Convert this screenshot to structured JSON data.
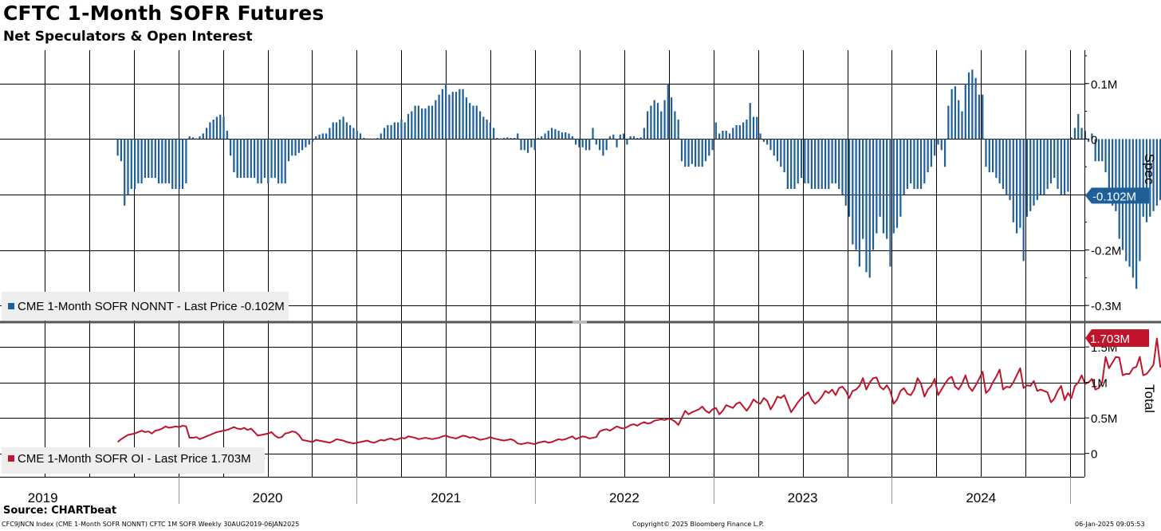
{
  "header": {
    "title": "CFTC 1-Month SOFR Futures",
    "subtitle": "Net Speculators & Open Interest"
  },
  "footer": {
    "source": "Source: CHARTbeat",
    "index_info": "CFC9JNCN Index (CME 1-Month SOFR NONNT) CFTC 1M SOFR  Weekly 30AUG2019-06JAN2025",
    "copyright": "Copyright© 2025 Bloomberg Finance L.P.",
    "timestamp": "06-Jan-2025 09:05:53"
  },
  "colors": {
    "spec_series": "#1f5f99",
    "oi_series": "#c0142b",
    "grid": "#000000",
    "legend_bg": "#eeeeee"
  },
  "chart_data": [
    {
      "type": "bar",
      "axis_label": "Spec",
      "legend": "CME 1-Month SOFR NONNT - Last Price -0.102M",
      "last_value_label": "-0.102M",
      "ylim": [
        -0.33,
        0.16
      ],
      "yticks": [
        {
          "value": 0.1,
          "label": "0.1M"
        },
        {
          "value": 0,
          "label": "0"
        },
        {
          "value": -0.1,
          "label": ""
        },
        {
          "value": -0.2,
          "label": "-0.2M"
        },
        {
          "value": -0.3,
          "label": "-0.3M"
        }
      ],
      "grid": true,
      "x_start": 2019.66,
      "x_step_weeks": 1,
      "unit": "millions of contracts",
      "values": [
        -0.03,
        -0.04,
        -0.12,
        -0.1,
        -0.09,
        -0.09,
        -0.08,
        -0.08,
        -0.07,
        -0.07,
        -0.07,
        -0.07,
        -0.08,
        -0.08,
        -0.08,
        -0.08,
        -0.09,
        -0.09,
        -0.09,
        -0.09,
        -0.08,
        0.005,
        0.003,
        0.001,
        0.005,
        0.01,
        0.02,
        0.03,
        0.035,
        0.04,
        0.044,
        0.04,
        0.015,
        -0.03,
        -0.06,
        -0.07,
        -0.07,
        -0.07,
        -0.07,
        -0.07,
        -0.07,
        -0.08,
        -0.08,
        -0.07,
        -0.08,
        -0.07,
        -0.07,
        -0.08,
        -0.08,
        -0.08,
        -0.04,
        -0.03,
        -0.03,
        -0.025,
        -0.02,
        -0.015,
        -0.01,
        -0.005,
        0.005,
        0.008,
        0.01,
        0.01,
        0.02,
        0.03,
        0.03,
        0.035,
        0.04,
        0.03,
        0.025,
        0.02,
        0.015,
        0.01,
        0.002,
        0.001,
        0.001,
        0.001,
        0.002,
        0.01,
        0.02,
        0.025,
        0.025,
        0.03,
        0.03,
        0.035,
        0.03,
        0.045,
        0.05,
        0.06,
        0.06,
        0.055,
        0.055,
        0.06,
        0.06,
        0.07,
        0.08,
        0.09,
        0.1,
        0.08,
        0.085,
        0.085,
        0.09,
        0.09,
        0.075,
        0.065,
        0.06,
        0.06,
        0.05,
        0.04,
        0.035,
        0.03,
        0.02,
        0.002,
        0.001,
        0.002,
        0.003,
        0.002,
        0.002,
        0.01,
        -0.02,
        -0.02,
        -0.025,
        -0.015,
        -0.02,
        0.002,
        0.005,
        0.01,
        0.015,
        0.02,
        0.018,
        0.015,
        0.012,
        0.012,
        0.01,
        0.005,
        -0.01,
        -0.015,
        -0.015,
        -0.02,
        -0.02,
        0.02,
        -0.01,
        -0.02,
        -0.03,
        -0.02,
        0.005,
        0.008,
        -0.015,
        0.008,
        0.01,
        -0.01,
        0.005,
        0.005,
        0.002,
        0.003,
        0.02,
        0.05,
        0.06,
        0.07,
        0.065,
        0.05,
        0.07,
        0.1,
        0.075,
        0.05,
        0.035,
        -0.04,
        -0.05,
        -0.05,
        -0.045,
        -0.05,
        -0.05,
        -0.05,
        -0.04,
        -0.03,
        -0.02,
        0.03,
        0.01,
        0.015,
        0.015,
        0.01,
        0.02,
        0.025,
        0.025,
        0.03,
        0.035,
        0.065,
        0.04,
        0.04,
        0.01,
        -0.005,
        -0.01,
        -0.02,
        -0.03,
        -0.04,
        -0.05,
        -0.06,
        -0.09,
        -0.09,
        -0.09,
        -0.08,
        -0.07,
        -0.08,
        -0.08,
        -0.09,
        -0.09,
        -0.09,
        -0.09,
        -0.09,
        -0.09,
        -0.08,
        -0.08,
        -0.09,
        -0.1,
        -0.12,
        -0.14,
        -0.19,
        -0.2,
        -0.23,
        -0.18,
        -0.24,
        -0.25,
        -0.2,
        -0.17,
        -0.14,
        -0.17,
        -0.18,
        -0.23,
        -0.17,
        -0.16,
        -0.14,
        -0.1,
        -0.09,
        -0.08,
        -0.09,
        -0.09,
        -0.09,
        -0.08,
        -0.06,
        -0.05,
        -0.03,
        -0.01,
        -0.02,
        -0.05,
        0.06,
        0.09,
        0.095,
        0.07,
        0.05,
        0.1,
        0.12,
        0.125,
        0.11,
        0.08,
        0.08,
        -0.05,
        -0.06,
        -0.06,
        -0.07,
        -0.08,
        -0.09,
        -0.1,
        -0.11,
        -0.15,
        -0.17,
        -0.16,
        -0.22,
        -0.14,
        -0.13,
        -0.12,
        -0.11,
        -0.1,
        -0.1,
        -0.09,
        -0.08,
        -0.07,
        -0.09,
        -0.1,
        -0.1,
        -0.095,
        0.003,
        0.02,
        0.045,
        0.02,
        0.015,
        -0.005,
        0.01,
        -0.04,
        -0.04,
        -0.04,
        -0.06,
        -0.09,
        -0.12,
        -0.13,
        -0.18,
        -0.2,
        -0.22,
        -0.23,
        -0.25,
        -0.27,
        -0.22,
        -0.14,
        -0.15,
        -0.14,
        -0.13,
        -0.12,
        -0.11,
        -0.07,
        -0.05,
        -0.102
      ]
    },
    {
      "type": "line",
      "axis_label": "Total",
      "legend": "CME 1-Month SOFR OI - Last Price 1.703M",
      "last_value_label": "1.703M",
      "ylim": [
        -0.33,
        1.85
      ],
      "yticks": [
        {
          "value": 1.5,
          "label": "1.5M"
        },
        {
          "value": 1.0,
          "label": "1M"
        },
        {
          "value": 0.5,
          "label": "0.5M"
        },
        {
          "value": 0,
          "label": "0"
        }
      ],
      "grid": true,
      "x_start": 2019.66,
      "x_step_weeks": 1,
      "unit": "millions of contracts",
      "values": [
        0.16,
        0.2,
        0.23,
        0.26,
        0.27,
        0.28,
        0.3,
        0.32,
        0.3,
        0.31,
        0.28,
        0.32,
        0.33,
        0.35,
        0.38,
        0.36,
        0.37,
        0.38,
        0.37,
        0.39,
        0.38,
        0.22,
        0.22,
        0.23,
        0.2,
        0.22,
        0.24,
        0.26,
        0.28,
        0.3,
        0.31,
        0.32,
        0.33,
        0.35,
        0.37,
        0.35,
        0.34,
        0.36,
        0.33,
        0.35,
        0.3,
        0.25,
        0.26,
        0.27,
        0.28,
        0.3,
        0.25,
        0.22,
        0.23,
        0.28,
        0.29,
        0.31,
        0.3,
        0.26,
        0.19,
        0.18,
        0.17,
        0.16,
        0.19,
        0.18,
        0.17,
        0.16,
        0.15,
        0.17,
        0.2,
        0.19,
        0.18,
        0.16,
        0.15,
        0.14,
        0.15,
        0.16,
        0.17,
        0.18,
        0.16,
        0.15,
        0.17,
        0.19,
        0.18,
        0.2,
        0.21,
        0.19,
        0.2,
        0.22,
        0.21,
        0.24,
        0.23,
        0.22,
        0.2,
        0.21,
        0.22,
        0.21,
        0.2,
        0.21,
        0.22,
        0.24,
        0.25,
        0.23,
        0.22,
        0.21,
        0.23,
        0.25,
        0.24,
        0.22,
        0.23,
        0.21,
        0.19,
        0.2,
        0.21,
        0.23,
        0.21,
        0.2,
        0.19,
        0.18,
        0.19,
        0.2,
        0.18,
        0.14,
        0.13,
        0.14,
        0.15,
        0.14,
        0.13,
        0.15,
        0.16,
        0.17,
        0.15,
        0.16,
        0.18,
        0.2,
        0.19,
        0.2,
        0.22,
        0.24,
        0.2,
        0.22,
        0.24,
        0.23,
        0.21,
        0.22,
        0.23,
        0.31,
        0.33,
        0.34,
        0.32,
        0.35,
        0.38,
        0.36,
        0.35,
        0.37,
        0.4,
        0.41,
        0.39,
        0.42,
        0.44,
        0.42,
        0.43,
        0.46,
        0.47,
        0.48,
        0.47,
        0.49,
        0.48,
        0.45,
        0.4,
        0.5,
        0.6,
        0.55,
        0.58,
        0.6,
        0.62,
        0.66,
        0.6,
        0.57,
        0.62,
        0.64,
        0.55,
        0.6,
        0.68,
        0.66,
        0.64,
        0.7,
        0.72,
        0.66,
        0.6,
        0.67,
        0.76,
        0.72,
        0.7,
        0.78,
        0.74,
        0.62,
        0.7,
        0.8,
        0.78,
        0.82,
        0.7,
        0.58,
        0.65,
        0.72,
        0.78,
        0.82,
        0.86,
        0.76,
        0.7,
        0.74,
        0.8,
        0.88,
        0.85,
        0.9,
        0.82,
        0.92,
        0.94,
        0.88,
        0.78,
        0.88,
        0.9,
        0.95,
        1.06,
        0.9,
        1.0,
        1.06,
        1.07,
        0.94,
        0.9,
        0.96,
        0.88,
        0.7,
        0.76,
        0.88,
        0.92,
        0.84,
        0.82,
        0.9,
        1.06,
        0.98,
        0.8,
        0.9,
        0.95,
        1.05,
        0.82,
        0.9,
        0.98,
        1.05,
        1.08,
        0.94,
        0.9,
        0.98,
        1.1,
        0.94,
        0.88,
        0.96,
        1.05,
        1.15,
        0.85,
        0.9,
        1.0,
        1.08,
        1.18,
        0.9,
        0.94,
        0.93,
        1.0,
        1.1,
        1.2,
        0.92,
        0.96,
        0.95,
        1.02,
        0.88,
        0.9,
        0.88,
        0.86,
        0.72,
        0.77,
        0.88,
        0.95,
        0.75,
        0.85,
        0.78,
        0.95,
        1.0,
        1.1,
        0.98,
        1.0,
        1.05,
        0.9,
        0.92,
        1.0,
        1.36,
        1.2,
        1.28,
        1.36,
        1.35,
        1.1,
        1.12,
        1.12,
        1.2,
        1.22,
        1.36,
        1.1,
        1.12,
        1.18,
        1.25,
        1.62,
        1.22,
        1.25,
        1.45,
        1.703
      ]
    }
  ],
  "x_axis": {
    "years": [
      "2019",
      "2020",
      "2021",
      "2022",
      "2023",
      "2024"
    ]
  }
}
